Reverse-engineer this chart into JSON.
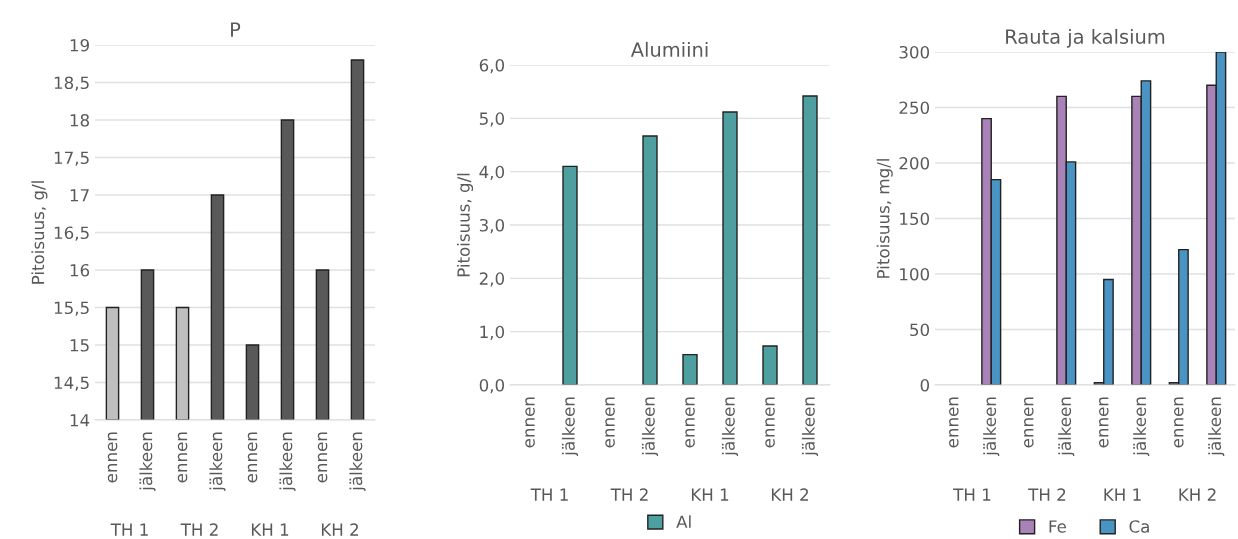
{
  "chart_data": [
    {
      "type": "bar",
      "title": "P",
      "ylabel": "Pitoisuus, g/l",
      "categories": [
        "ennen",
        "jälkeen",
        "ennen",
        "jälkeen",
        "ennen",
        "jälkeen",
        "ennen",
        "jälkeen"
      ],
      "values": [
        15.5,
        16,
        15.5,
        17,
        15,
        18,
        16,
        18.8
      ],
      "colors": [
        "#bfbfbf",
        "#595959",
        "#bfbfbf",
        "#595959",
        "#595959",
        "#595959",
        "#595959",
        "#595959"
      ],
      "ylim": [
        14,
        19
      ],
      "yticks": [
        14,
        {
          "value": 14.5,
          "label": "14,5"
        },
        15,
        {
          "value": 15.5,
          "label": "15,5"
        },
        16,
        {
          "value": 16.5,
          "label": "16,5"
        },
        17,
        {
          "value": 17.5,
          "label": "17,5"
        },
        18,
        {
          "value": 18.5,
          "label": "18,5"
        },
        19
      ],
      "annotations": [
        "TH 1",
        "TH 2",
        "KH 1",
        "KH 2"
      ],
      "grid": "y",
      "legend": false
    },
    {
      "type": "bar",
      "title": "Alumiini",
      "ylabel": "Pitoisuus, g/l",
      "categories": [
        "ennen",
        "jälkeen",
        "ennen",
        "jälkeen",
        "ennen",
        "jälkeen",
        "ennen",
        "jälkeen"
      ],
      "series": [
        {
          "name": "Al",
          "color": "#4ea0a0",
          "values": [
            null,
            4.1,
            null,
            4.67,
            0.57,
            5.12,
            0.73,
            5.42
          ]
        }
      ],
      "ylim": [
        0,
        6
      ],
      "yticks": [
        {
          "value": 0,
          "label": "0,0"
        },
        {
          "value": 1,
          "label": "1,0"
        },
        {
          "value": 2,
          "label": "2,0"
        },
        {
          "value": 3,
          "label": "3,0"
        },
        {
          "value": 4,
          "label": "4,0"
        },
        {
          "value": 5,
          "label": "5,0"
        },
        {
          "value": 6,
          "label": "6,0"
        }
      ],
      "annotations": [
        "TH 1",
        "TH 2",
        "KH 1",
        "KH 2"
      ],
      "grid": "y",
      "legend": "bottom"
    },
    {
      "type": "bar",
      "title": "Rauta ja kalsium",
      "ylabel": "Pitoisuus, mg/l",
      "categories": [
        "ennen",
        "jälkeen",
        "ennen",
        "jälkeen",
        "ennen",
        "jälkeen",
        "ennen",
        "jälkeen"
      ],
      "series": [
        {
          "name": "Fe",
          "color": "#a982b8",
          "values": [
            null,
            240,
            null,
            260,
            2,
            260,
            2,
            270
          ]
        },
        {
          "name": "Ca",
          "color": "#4a94c4",
          "values": [
            null,
            185,
            null,
            201,
            95,
            274,
            122,
            300
          ]
        }
      ],
      "ylim": [
        0,
        300
      ],
      "yticks": [
        0,
        50,
        100,
        150,
        200,
        250,
        300
      ],
      "annotations": [
        "TH 1",
        "TH 2",
        "KH 1",
        "KH 2"
      ],
      "grid": "y",
      "legend": "bottom"
    }
  ]
}
